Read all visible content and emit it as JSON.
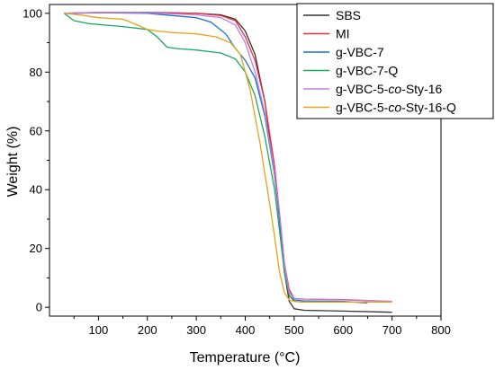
{
  "chart_data": {
    "type": "line",
    "xlabel": "Temperature (°C)",
    "ylabel": "Weight (%)",
    "xlim": [
      0,
      800
    ],
    "ylim": [
      -3,
      103
    ],
    "xticks": [
      100,
      200,
      300,
      400,
      500,
      600,
      700,
      800
    ],
    "yticks": [
      0,
      20,
      40,
      60,
      80,
      100
    ],
    "grid": false,
    "legend_position": "top-right",
    "series": [
      {
        "name": "SBS",
        "legend_parts": [
          "SBS"
        ],
        "color": "#333333",
        "x": [
          30,
          100,
          200,
          300,
          350,
          380,
          400,
          420,
          440,
          460,
          470,
          480,
          490,
          500,
          520,
          600,
          700
        ],
        "y": [
          100,
          100.2,
          100.3,
          100,
          99.5,
          98,
          94,
          86,
          70,
          45,
          30,
          12,
          2,
          -0.5,
          -1,
          -1.3,
          -1.7
        ]
      },
      {
        "name": "MI",
        "legend_parts": [
          "MI"
        ],
        "color": "#e8343a",
        "x": [
          30,
          100,
          200,
          300,
          350,
          380,
          400,
          420,
          440,
          460,
          470,
          480,
          490,
          500,
          520,
          600,
          700
        ],
        "y": [
          100,
          100.3,
          100.2,
          100,
          99.2,
          97.5,
          92,
          84,
          70,
          48,
          32,
          15,
          6,
          3,
          2.8,
          2.6,
          2
        ]
      },
      {
        "name": "g-VBC-7",
        "legend_parts": [
          "g-VBC-7"
        ],
        "color": "#1f6fd1",
        "x": [
          30,
          100,
          200,
          300,
          330,
          360,
          380,
          400,
          420,
          440,
          460,
          470,
          480,
          490,
          500,
          520,
          600,
          650
        ],
        "y": [
          100,
          100.2,
          100,
          98.5,
          97,
          93,
          88,
          84,
          78,
          65,
          45,
          30,
          12,
          4,
          2.5,
          2.2,
          2,
          1.5
        ]
      },
      {
        "name": "g-VBC-7-Q",
        "legend_parts": [
          "g-VBC-7-Q"
        ],
        "color": "#1aa866",
        "x": [
          30,
          50,
          80,
          150,
          200,
          220,
          240,
          260,
          300,
          350,
          380,
          400,
          420,
          440,
          460,
          470,
          480,
          490,
          500,
          520,
          600
        ],
        "y": [
          100,
          97.5,
          96.5,
          95.5,
          94.5,
          92,
          88.5,
          88,
          87.5,
          86.5,
          84.5,
          80,
          72,
          58,
          40,
          26,
          12,
          4,
          2,
          1.8,
          1.8
        ]
      },
      {
        "name": "g-VBC-5-co-Sty-16",
        "legend_parts": [
          "g-VBC-5-",
          "co",
          "-Sty-16"
        ],
        "color": "#c77be0",
        "x": [
          30,
          100,
          200,
          300,
          350,
          380,
          400,
          420,
          440,
          460,
          470,
          480,
          490,
          500,
          520,
          600,
          700
        ],
        "y": [
          100,
          100.3,
          100.2,
          99.5,
          98.5,
          96,
          90,
          80,
          66,
          46,
          32,
          15,
          5,
          3,
          2.8,
          2.5,
          2
        ]
      },
      {
        "name": "g-VBC-5-co-Sty-16-Q",
        "legend_parts": [
          "g-VBC-5-",
          "co",
          "-Sty-16-Q"
        ],
        "color": "#e8a317",
        "x": [
          30,
          60,
          100,
          150,
          180,
          200,
          220,
          250,
          300,
          340,
          370,
          390,
          410,
          430,
          450,
          460,
          470,
          480,
          490,
          500,
          520,
          600,
          700
        ],
        "y": [
          100,
          99.5,
          98.5,
          98,
          96,
          94.5,
          94,
          93.5,
          93,
          92,
          90,
          86,
          74,
          56,
          35,
          24,
          12,
          5,
          2.5,
          2,
          1.8,
          1.8,
          1.8
        ]
      }
    ]
  }
}
